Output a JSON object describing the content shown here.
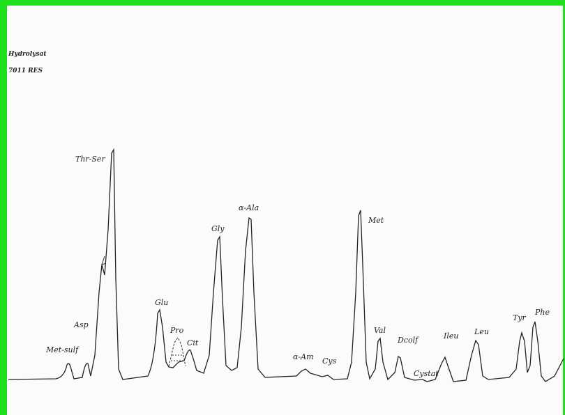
{
  "header": {
    "lines": [
      "Hydrolysat",
      "7011 RES"
    ]
  },
  "peaks": [
    {
      "label": "Met-sulf"
    },
    {
      "label": "Asp"
    },
    {
      "label": "Thr-Ser"
    },
    {
      "label": "Glu"
    },
    {
      "label": "Pro"
    },
    {
      "label": "Cit"
    },
    {
      "label": "Gly"
    },
    {
      "label": "α-Ala"
    },
    {
      "label": "α-Am"
    },
    {
      "label": "Cys"
    },
    {
      "label": "Met"
    },
    {
      "label": "Val"
    },
    {
      "label": "Dcolf"
    },
    {
      "label": "Cystat"
    },
    {
      "label": "Ileu"
    },
    {
      "label": "Leu"
    },
    {
      "label": "Tyr"
    },
    {
      "label": "Phe"
    }
  ]
}
